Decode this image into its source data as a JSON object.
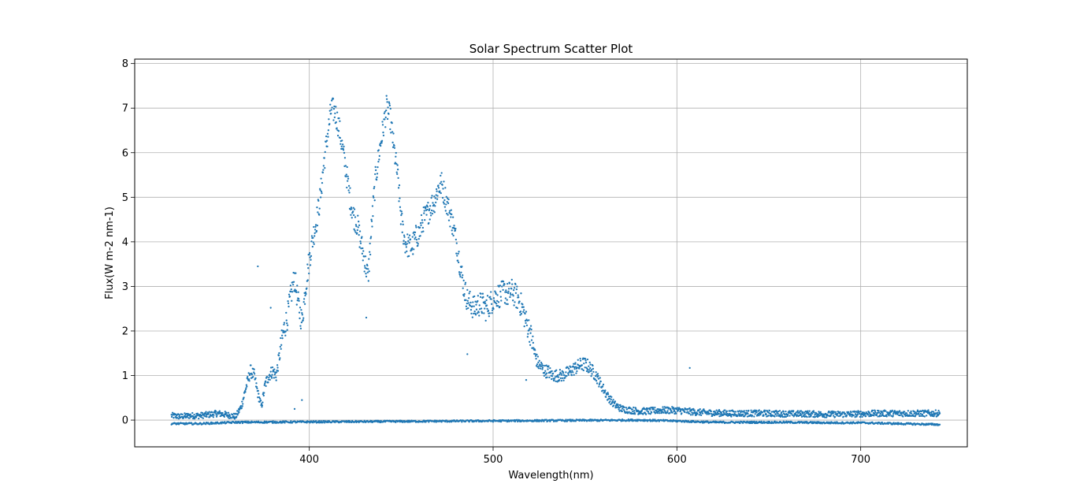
{
  "chart_data": {
    "type": "scatter",
    "title": "Solar Spectrum Scatter Plot",
    "xlabel": "Wavelength(nm)",
    "ylabel": "Flux(W m-2 nm-1)",
    "xlim": [
      305,
      758
    ],
    "ylim": [
      -0.6,
      8.1
    ],
    "x_ticks": [
      400,
      500,
      600,
      700
    ],
    "x_tick_labels": [
      "400",
      "500",
      "600",
      "700"
    ],
    "y_ticks": [
      0,
      1,
      2,
      3,
      4,
      5,
      6,
      7,
      8
    ],
    "y_tick_labels": [
      "0",
      "1",
      "2",
      "3",
      "4",
      "5",
      "6",
      "7",
      "8"
    ],
    "grid": true,
    "point_color": "#1f77b4",
    "series": [
      {
        "x": [
          325,
          330,
          335,
          340,
          345,
          350,
          355,
          360,
          363,
          366,
          368,
          370,
          372,
          374,
          376,
          378,
          380,
          382,
          384,
          386,
          388,
          390,
          392,
          394,
          396,
          398,
          400,
          402,
          404,
          406,
          408,
          410,
          412,
          414,
          416,
          418,
          420,
          422,
          424,
          426,
          428,
          430,
          432,
          434,
          436,
          438,
          440,
          442,
          444,
          446,
          448,
          450,
          452,
          454,
          456,
          458,
          460,
          462,
          464,
          466,
          468,
          470,
          472,
          474,
          476,
          478,
          480,
          482,
          484,
          486,
          488,
          490,
          492,
          494,
          496,
          498,
          500,
          502,
          504,
          506,
          508,
          510,
          512,
          514,
          516,
          518,
          520,
          522,
          524,
          526,
          528,
          530,
          532,
          534,
          536,
          538,
          540,
          542,
          544,
          546,
          548,
          550,
          552,
          554,
          556,
          558,
          560,
          562,
          564,
          566,
          568,
          570,
          575,
          580,
          585,
          590,
          595,
          600,
          605,
          610,
          620,
          630,
          640,
          650,
          660,
          670,
          680,
          690,
          700,
          710,
          720,
          730,
          743
        ],
        "y": [
          0.1,
          0.08,
          0.1,
          0.1,
          0.12,
          0.15,
          0.12,
          0.08,
          0.3,
          0.8,
          1.1,
          1.0,
          0.6,
          0.3,
          0.8,
          1.0,
          1.1,
          1.0,
          1.5,
          2.0,
          2.3,
          2.8,
          3.2,
          2.6,
          2.2,
          3.0,
          3.6,
          4.1,
          4.5,
          5.0,
          5.8,
          6.4,
          7.0,
          6.9,
          6.6,
          6.1,
          5.6,
          5.0,
          4.6,
          4.4,
          4.0,
          3.6,
          3.2,
          4.4,
          5.4,
          6.0,
          6.5,
          7.0,
          6.8,
          6.1,
          5.5,
          4.5,
          4.0,
          3.9,
          3.9,
          4.1,
          4.2,
          4.5,
          4.6,
          4.8,
          4.9,
          5.2,
          5.3,
          5.0,
          4.7,
          4.4,
          4.0,
          3.5,
          3.0,
          2.7,
          2.6,
          2.5,
          2.6,
          2.6,
          2.5,
          2.6,
          2.7,
          2.8,
          2.8,
          2.9,
          2.8,
          2.9,
          2.8,
          2.7,
          2.5,
          2.2,
          2.0,
          1.6,
          1.3,
          1.2,
          1.1,
          1.1,
          1.0,
          1.0,
          1.0,
          1.0,
          1.05,
          1.1,
          1.15,
          1.2,
          1.25,
          1.25,
          1.2,
          1.1,
          1.0,
          0.85,
          0.7,
          0.55,
          0.45,
          0.35,
          0.3,
          0.25,
          0.22,
          0.2,
          0.2,
          0.22,
          0.22,
          0.22,
          0.2,
          0.18,
          0.16,
          0.15,
          0.15,
          0.15,
          0.14,
          0.14,
          0.13,
          0.13,
          0.14,
          0.15,
          0.15,
          0.15,
          0.15
        ]
      },
      {
        "x": [
          325,
          340,
          360,
          580,
          600,
          620,
          640,
          660,
          680,
          700,
          720,
          743
        ],
        "y": [
          -0.08,
          -0.08,
          -0.05,
          0.0,
          -0.02,
          -0.05,
          -0.05,
          -0.05,
          -0.06,
          -0.06,
          -0.08,
          -0.1
        ]
      }
    ],
    "outliers": [
      {
        "x": 372,
        "y": 3.45
      },
      {
        "x": 379,
        "y": 2.52
      },
      {
        "x": 396,
        "y": 0.45
      },
      {
        "x": 392,
        "y": 0.25
      },
      {
        "x": 431,
        "y": 2.3
      },
      {
        "x": 486,
        "y": 1.48
      },
      {
        "x": 518,
        "y": 0.9
      },
      {
        "x": 607,
        "y": 1.17
      }
    ]
  }
}
